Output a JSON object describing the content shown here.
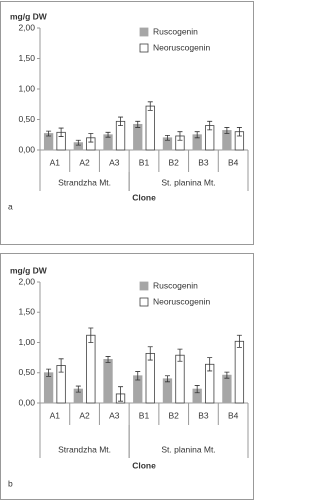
{
  "chart_data": [
    {
      "type": "bar",
      "panel_label": "a",
      "ylabel": "mg/g DW",
      "xlabel": "Clone",
      "grid": false,
      "legend": "upper right",
      "categories": [
        "A1",
        "A2",
        "A3",
        "B1",
        "B2",
        "B3",
        "B4"
      ],
      "groups": [
        {
          "label": "Strandzha Mt.",
          "size": 3
        },
        {
          "label": "St. planina Mt.",
          "size": 4
        }
      ],
      "ylim": [
        0,
        2
      ],
      "yticks": [
        {
          "value": 0,
          "label": "0,00"
        },
        {
          "value": 0.5,
          "label": "0,50"
        },
        {
          "value": 1,
          "label": "1,00"
        },
        {
          "value": 1.5,
          "label": "1,50"
        },
        {
          "value": 2,
          "label": "2,00"
        }
      ],
      "series": [
        {
          "name": "Ruscogenin",
          "color": "#a6a6a6",
          "edgecolor": "#a6a6a6",
          "values": [
            0.27,
            0.12,
            0.25,
            0.42,
            0.2,
            0.25,
            0.32
          ],
          "errors": [
            0.04,
            0.04,
            0.04,
            0.05,
            0.04,
            0.05,
            0.05
          ]
        },
        {
          "name": "Neoruscogenin",
          "color": "#ffffff",
          "edgecolor": "#404040",
          "values": [
            0.29,
            0.2,
            0.47,
            0.72,
            0.23,
            0.4,
            0.3
          ],
          "errors": [
            0.07,
            0.07,
            0.07,
            0.07,
            0.07,
            0.07,
            0.07
          ]
        }
      ]
    },
    {
      "type": "bar",
      "panel_label": "b",
      "ylabel": "mg/g DW",
      "xlabel": "Clone",
      "grid": false,
      "legend": "upper right",
      "categories": [
        "A1",
        "A2",
        "A3",
        "B1",
        "B2",
        "B3",
        "B4"
      ],
      "groups": [
        {
          "label": "Strandzha Mt.",
          "size": 3
        },
        {
          "label": "St. planina Mt.",
          "size": 4
        }
      ],
      "ylim": [
        0,
        2
      ],
      "yticks": [
        {
          "value": 0,
          "label": "0,00"
        },
        {
          "value": 0.5,
          "label": "0,50"
        },
        {
          "value": 1,
          "label": "1,00"
        },
        {
          "value": 1.5,
          "label": "1,50"
        },
        {
          "value": 2,
          "label": "2,00"
        }
      ],
      "series": [
        {
          "name": "Ruscogenin",
          "color": "#a6a6a6",
          "edgecolor": "#a6a6a6",
          "values": [
            0.5,
            0.23,
            0.72,
            0.45,
            0.4,
            0.23,
            0.46
          ],
          "errors": [
            0.06,
            0.05,
            0.05,
            0.07,
            0.05,
            0.06,
            0.05
          ]
        },
        {
          "name": "Neoruscogenin",
          "color": "#ffffff",
          "edgecolor": "#404040",
          "values": [
            0.62,
            1.12,
            0.15,
            0.82,
            0.79,
            0.64,
            1.02
          ],
          "errors": [
            0.11,
            0.12,
            0.12,
            0.11,
            0.1,
            0.11,
            0.1
          ]
        }
      ]
    }
  ]
}
